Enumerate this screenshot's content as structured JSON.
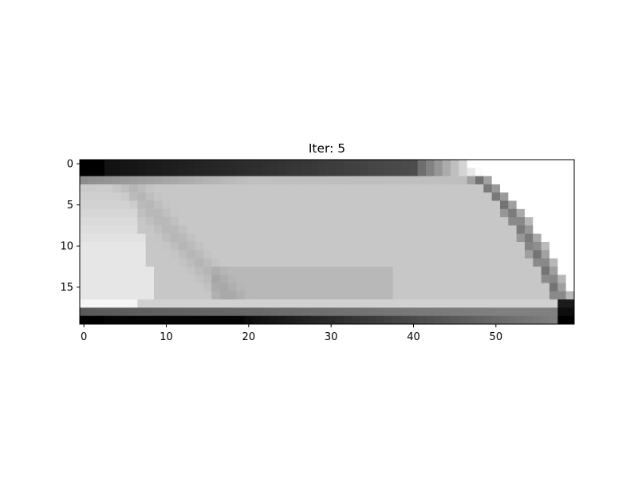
{
  "chart_data": {
    "type": "heatmap",
    "title": "Iter: 5",
    "colormap": "gray",
    "shape": [
      20,
      60
    ],
    "xticks": [
      0,
      10,
      20,
      30,
      40,
      50
    ],
    "yticks": [
      0,
      5,
      10,
      15
    ],
    "xlim": [
      -0.5,
      59.5
    ],
    "ylim": [
      19.5,
      -0.5
    ],
    "xlabel": "",
    "ylabel": "",
    "grid": false,
    "value_range": [
      0,
      1
    ],
    "description_model": {
      "top_wall_rows": [
        0,
        1
      ],
      "bottom_wall_rows": [
        18,
        19
      ],
      "arc_end_column": 59,
      "interior_fill_value": 0.78,
      "corner_cutoff_value": 1.0
    }
  },
  "colors": {
    "axes_edge": "#000000",
    "background": "#ffffff"
  }
}
